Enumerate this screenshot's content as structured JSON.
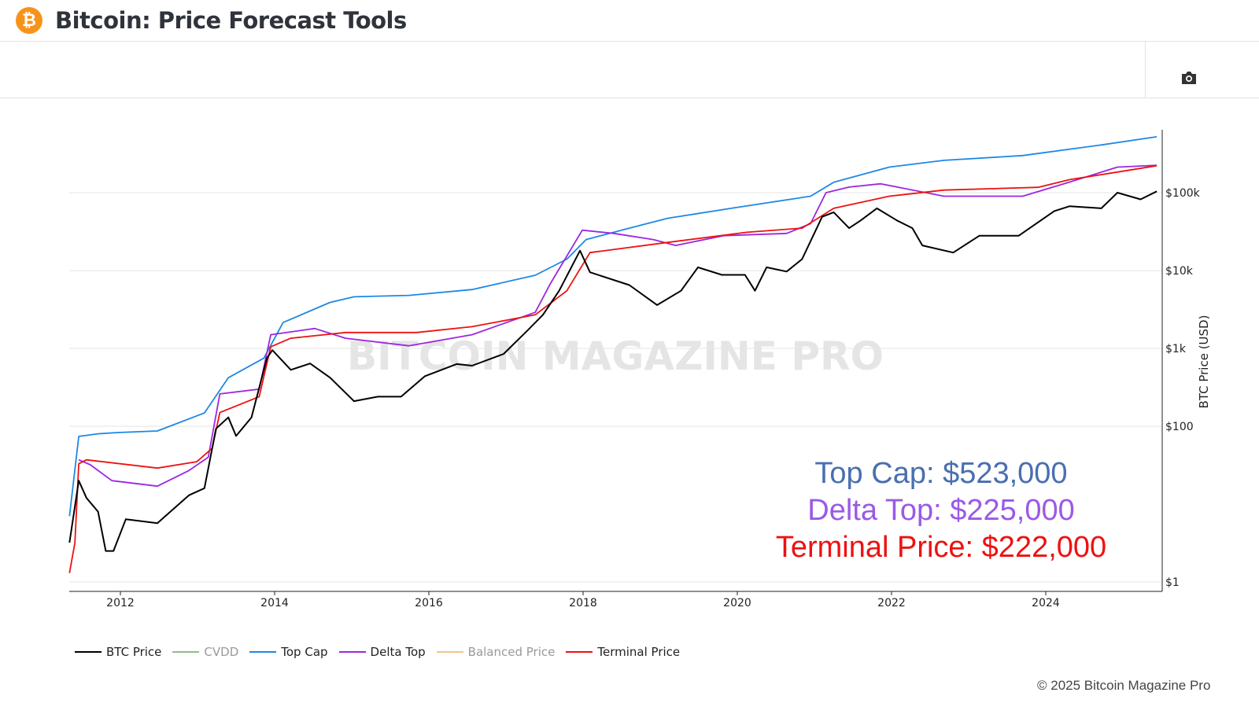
{
  "header": {
    "title": "Bitcoin: Price Forecast Tools",
    "logo_icon": "bitcoin-icon"
  },
  "toolbar": {
    "camera_icon": "camera-icon"
  },
  "watermark": "BITCOIN MAGAZINE PRO",
  "footer": {
    "copyright": "© 2025 Bitcoin Magazine Pro"
  },
  "chart_data": {
    "type": "line",
    "ylabel": "BTC Price (USD)",
    "yscale": "log",
    "ylim": [
      0.8,
      700000
    ],
    "xlim": [
      2011.34,
      2025.5
    ],
    "x_ticks": [
      "2012",
      "2014",
      "2016",
      "2018",
      "2020",
      "2022",
      "2024"
    ],
    "y_ticks": [
      {
        "v": 1,
        "label": "$1"
      },
      {
        "v": 100,
        "label": "$100"
      },
      {
        "v": 1000,
        "label": "$1k"
      },
      {
        "v": 10000,
        "label": "$10k"
      },
      {
        "v": 100000,
        "label": "$100k"
      }
    ],
    "grid": true,
    "legend_position": "bottom",
    "annotations": [
      {
        "text": "Top Cap: $523,000",
        "color": "#4a6fb0"
      },
      {
        "text": "Delta Top: $225,000",
        "color": "#9b59e6"
      },
      {
        "text": "Terminal Price: $222,000",
        "color": "#ee1111"
      }
    ],
    "series": [
      {
        "name": "BTC Price",
        "color": "#000000",
        "points": [
          [
            2011.34,
            3.2
          ],
          [
            2011.46,
            20
          ],
          [
            2011.56,
            12
          ],
          [
            2011.71,
            8
          ],
          [
            2011.81,
            2.5
          ],
          [
            2011.91,
            2.5
          ],
          [
            2012.07,
            6.4
          ],
          [
            2012.48,
            5.7
          ],
          [
            2012.89,
            13
          ],
          [
            2013.09,
            16
          ],
          [
            2013.24,
            93
          ],
          [
            2013.4,
            130
          ],
          [
            2013.5,
            75
          ],
          [
            2013.7,
            130
          ],
          [
            2013.9,
            750
          ],
          [
            2013.97,
            950
          ],
          [
            2014.21,
            530
          ],
          [
            2014.46,
            640
          ],
          [
            2014.72,
            420
          ],
          [
            2015.03,
            210
          ],
          [
            2015.34,
            240
          ],
          [
            2015.64,
            240
          ],
          [
            2015.95,
            440
          ],
          [
            2016.36,
            630
          ],
          [
            2016.56,
            600
          ],
          [
            2016.97,
            850
          ],
          [
            2017.28,
            1700
          ],
          [
            2017.48,
            2700
          ],
          [
            2017.69,
            5500
          ],
          [
            2017.96,
            18000
          ],
          [
            2018.09,
            9500
          ],
          [
            2018.6,
            6500
          ],
          [
            2018.96,
            3600
          ],
          [
            2019.27,
            5500
          ],
          [
            2019.49,
            11000
          ],
          [
            2019.8,
            8800
          ],
          [
            2020.1,
            8800
          ],
          [
            2020.23,
            5500
          ],
          [
            2020.38,
            11000
          ],
          [
            2020.64,
            9700
          ],
          [
            2020.84,
            14000
          ],
          [
            2021.1,
            49000
          ],
          [
            2021.25,
            56000
          ],
          [
            2021.45,
            35000
          ],
          [
            2021.6,
            44000
          ],
          [
            2021.81,
            63000
          ],
          [
            2022.07,
            44000
          ],
          [
            2022.27,
            35000
          ],
          [
            2022.4,
            21000
          ],
          [
            2022.8,
            17000
          ],
          [
            2023.14,
            28000
          ],
          [
            2023.65,
            28000
          ],
          [
            2024.11,
            58000
          ],
          [
            2024.31,
            67000
          ],
          [
            2024.72,
            63000
          ],
          [
            2024.93,
            100000
          ],
          [
            2025.23,
            82000
          ],
          [
            2025.44,
            104000
          ]
        ]
      },
      {
        "name": "CVDD",
        "color": "#8fbc8f",
        "points": []
      },
      {
        "name": "Top Cap",
        "color": "#1e88e5",
        "points": [
          [
            2011.34,
            7
          ],
          [
            2011.46,
            74
          ],
          [
            2011.71,
            80
          ],
          [
            2011.97,
            83
          ],
          [
            2012.48,
            87
          ],
          [
            2013.09,
            148
          ],
          [
            2013.4,
            420
          ],
          [
            2013.86,
            750
          ],
          [
            2014.11,
            2150
          ],
          [
            2014.72,
            3900
          ],
          [
            2015.03,
            4600
          ],
          [
            2015.74,
            4800
          ],
          [
            2016.56,
            5700
          ],
          [
            2017.38,
            8700
          ],
          [
            2017.79,
            14000
          ],
          [
            2018.04,
            25000
          ],
          [
            2018.6,
            35000
          ],
          [
            2019.1,
            47000
          ],
          [
            2019.92,
            63000
          ],
          [
            2020.95,
            90000
          ],
          [
            2021.25,
            136000
          ],
          [
            2021.97,
            213000
          ],
          [
            2022.68,
            260000
          ],
          [
            2023.7,
            300000
          ],
          [
            2024.72,
            410000
          ],
          [
            2025.44,
            523000
          ]
        ]
      },
      {
        "name": "Delta Top",
        "color": "#9c27e0",
        "points": [
          [
            2011.46,
            37
          ],
          [
            2011.61,
            32
          ],
          [
            2011.89,
            20
          ],
          [
            2012.48,
            17
          ],
          [
            2012.89,
            27
          ],
          [
            2013.14,
            40
          ],
          [
            2013.29,
            260
          ],
          [
            2013.8,
            300
          ],
          [
            2013.95,
            1500
          ],
          [
            2014.52,
            1800
          ],
          [
            2014.92,
            1350
          ],
          [
            2015.74,
            1080
          ],
          [
            2016.56,
            1500
          ],
          [
            2017.38,
            2900
          ],
          [
            2017.58,
            6900
          ],
          [
            2017.99,
            33000
          ],
          [
            2018.4,
            30000
          ],
          [
            2018.91,
            25000
          ],
          [
            2019.2,
            21000
          ],
          [
            2019.82,
            28000
          ],
          [
            2020.64,
            30000
          ],
          [
            2020.95,
            40000
          ],
          [
            2021.15,
            100000
          ],
          [
            2021.45,
            118000
          ],
          [
            2021.86,
            130000
          ],
          [
            2022.68,
            90000
          ],
          [
            2023.7,
            90000
          ],
          [
            2024.31,
            137000
          ],
          [
            2024.93,
            213000
          ],
          [
            2025.44,
            225000
          ]
        ]
      },
      {
        "name": "Balanced Price",
        "color": "#f5c48a",
        "points": []
      },
      {
        "name": "Terminal Price",
        "color": "#ee1111",
        "points": [
          [
            2011.34,
            1.3
          ],
          [
            2011.41,
            3.2
          ],
          [
            2011.46,
            33
          ],
          [
            2011.56,
            37
          ],
          [
            2012.48,
            29
          ],
          [
            2012.99,
            35
          ],
          [
            2013.19,
            52
          ],
          [
            2013.29,
            150
          ],
          [
            2013.8,
            240
          ],
          [
            2013.95,
            1050
          ],
          [
            2014.21,
            1350
          ],
          [
            2014.92,
            1600
          ],
          [
            2015.84,
            1600
          ],
          [
            2016.56,
            1900
          ],
          [
            2017.38,
            2700
          ],
          [
            2017.79,
            5500
          ],
          [
            2018.09,
            17000
          ],
          [
            2019.1,
            23000
          ],
          [
            2020.12,
            31000
          ],
          [
            2020.84,
            35000
          ],
          [
            2021.25,
            63000
          ],
          [
            2021.97,
            90000
          ],
          [
            2022.68,
            108000
          ],
          [
            2023.9,
            117000
          ],
          [
            2024.31,
            147000
          ],
          [
            2024.93,
            184000
          ],
          [
            2025.44,
            222000
          ]
        ]
      }
    ]
  }
}
